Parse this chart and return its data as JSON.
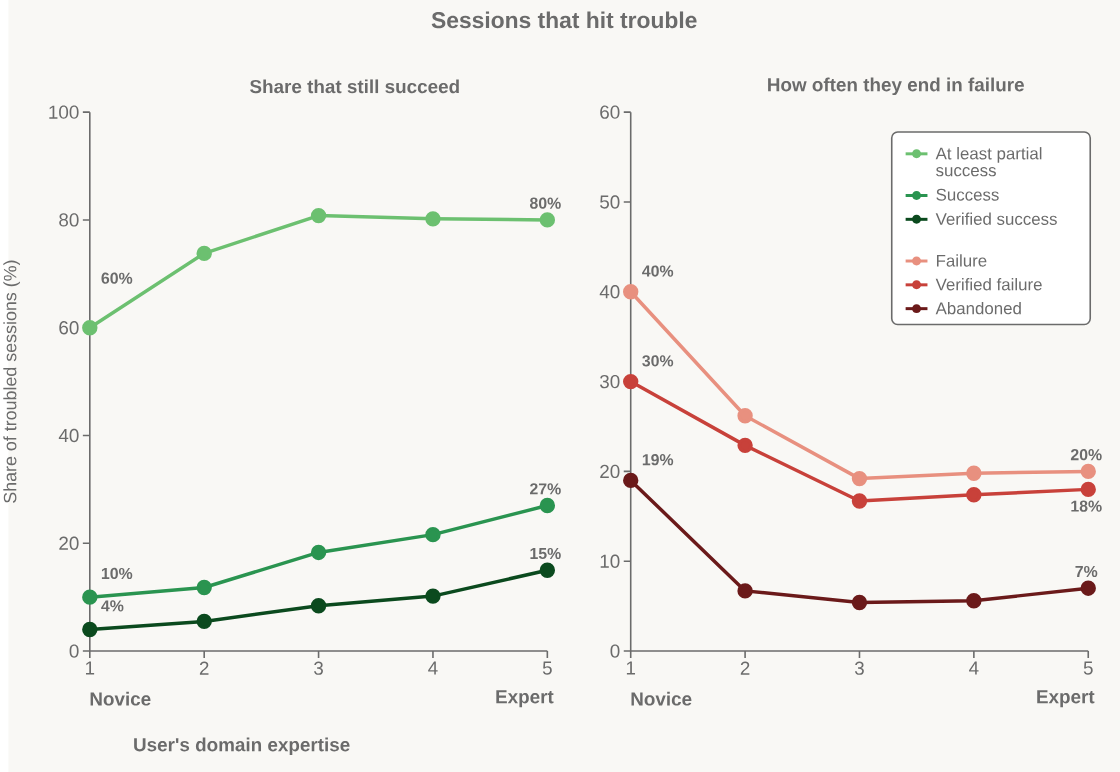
{
  "chart_data": [
    {
      "type": "line",
      "title": "Sessions that hit trouble",
      "subtitle": "Share that still succeed",
      "xlabel": "User's domain expertise",
      "ylabel": "Share of troubled sessions (%)",
      "x": [
        1,
        2,
        3,
        4,
        5
      ],
      "xlim": [
        1,
        5
      ],
      "xticks": [
        1,
        2,
        3,
        4,
        5
      ],
      "ylim": [
        0,
        100
      ],
      "yticks": [
        0,
        20,
        40,
        60,
        80,
        100
      ],
      "marker": "circle",
      "line_style": "solid",
      "legend": "right",
      "annotations": [
        "Novice",
        "Expert"
      ],
      "series": [
        {
          "name": "At least partial success",
          "color": "#6cc070",
          "values": [
            60,
            73.8,
            80.8,
            80.2,
            80
          ],
          "value_labels": [
            "60%",
            null,
            null,
            null,
            "80%"
          ]
        },
        {
          "name": "Success",
          "color": "#2a9450",
          "values": [
            10,
            11.8,
            18.3,
            21.6,
            27
          ],
          "value_labels": [
            "10%",
            null,
            null,
            null,
            "27%"
          ]
        },
        {
          "name": "Verified success",
          "color": "#0b4a1e",
          "values": [
            4,
            5.5,
            8.4,
            10.2,
            15
          ],
          "value_labels": [
            "4%",
            null,
            null,
            null,
            "15%"
          ]
        }
      ]
    },
    {
      "type": "line",
      "subtitle": "How often they end in failure",
      "x": [
        1,
        2,
        3,
        4,
        5
      ],
      "xlim": [
        1,
        5
      ],
      "xticks": [
        1,
        2,
        3,
        4,
        5
      ],
      "ylim": [
        0,
        60
      ],
      "yticks": [
        0,
        10,
        20,
        30,
        40,
        50,
        60
      ],
      "marker": "circle",
      "line_style": "solid",
      "legend": "top right",
      "annotations": [
        "Novice",
        "Expert"
      ],
      "series": [
        {
          "name": "Failure",
          "color": "#e8907f",
          "values": [
            40,
            26.2,
            19.2,
            19.8,
            20
          ],
          "value_labels": [
            "40%",
            null,
            null,
            null,
            "20%"
          ]
        },
        {
          "name": "Verified failure",
          "color": "#c8413a",
          "values": [
            30,
            22.9,
            16.7,
            17.4,
            18
          ],
          "value_labels": [
            "30%",
            null,
            null,
            null,
            "18%"
          ]
        },
        {
          "name": "Abandoned",
          "color": "#6b1a1a",
          "values": [
            19,
            6.7,
            5.4,
            5.6,
            7
          ],
          "value_labels": [
            "19%",
            null,
            null,
            null,
            "7%"
          ]
        }
      ]
    }
  ]
}
